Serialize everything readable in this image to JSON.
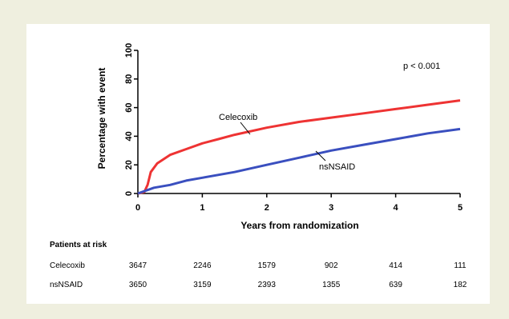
{
  "chart_data": {
    "type": "line",
    "title": "",
    "xlabel": "Years from randomization",
    "ylabel": "Percentage with event",
    "xlim": [
      0,
      5
    ],
    "ylim": [
      0,
      100
    ],
    "xticks": [
      "0",
      "1",
      "2",
      "3",
      "4",
      "5"
    ],
    "yticks": [
      "0",
      "20",
      "40",
      "60",
      "80",
      "100"
    ],
    "annotation": "p < 0.001",
    "grid": false,
    "series": [
      {
        "name": "Celecoxib",
        "color": "#ee3333",
        "x": [
          0,
          0.1,
          0.15,
          0.2,
          0.3,
          0.5,
          0.75,
          1.0,
          1.25,
          1.5,
          2.0,
          2.5,
          3.0,
          3.5,
          4.0,
          4.5,
          5.0
        ],
        "y": [
          0,
          1,
          6,
          15,
          21,
          27,
          31,
          35,
          38,
          41,
          46,
          50,
          53,
          56,
          59,
          62,
          65
        ]
      },
      {
        "name": "nsNSAID",
        "color": "#3a4fbf",
        "x": [
          0,
          0.25,
          0.5,
          0.75,
          1.0,
          1.5,
          2.0,
          2.5,
          3.0,
          3.5,
          4.0,
          4.5,
          5.0
        ],
        "y": [
          0,
          4,
          6,
          9,
          11,
          15,
          20,
          25,
          30,
          34,
          38,
          42,
          45
        ]
      }
    ]
  },
  "risk_table": {
    "header": "Patients at risk",
    "rows": [
      {
        "name": "Celecoxib",
        "values": [
          "3647",
          "2246",
          "1579",
          "902",
          "414",
          "111"
        ]
      },
      {
        "name": "nsNSAID",
        "values": [
          "3650",
          "3159",
          "2393",
          "1355",
          "639",
          "182"
        ]
      }
    ]
  }
}
